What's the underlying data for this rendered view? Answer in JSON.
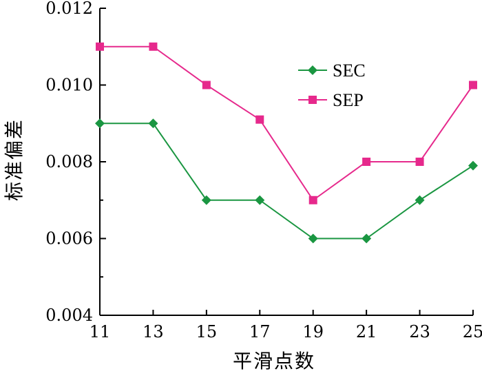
{
  "chart_data": {
    "type": "line",
    "x": [
      11,
      13,
      15,
      17,
      19,
      21,
      23,
      25
    ],
    "xlabel": "平滑点数",
    "ylabel": "标准偏差",
    "xlim": [
      11,
      25
    ],
    "ylim": [
      0.004,
      0.012
    ],
    "xticks": [
      "11",
      "13",
      "15",
      "17",
      "19",
      "21",
      "23",
      "25"
    ],
    "yticks": [
      "0.004",
      "0.006",
      "0.008",
      "0.010",
      "0.012"
    ],
    "grid": false,
    "legend_position": "top-right",
    "series": [
      {
        "name": "SEC",
        "color": "#1a9641",
        "marker": "diamond",
        "values": [
          0.009,
          0.009,
          0.007,
          0.007,
          0.006,
          0.006,
          0.007,
          0.0079
        ]
      },
      {
        "name": "SEP",
        "color": "#e6298c",
        "marker": "square",
        "values": [
          0.011,
          0.011,
          0.01,
          0.0091,
          0.007,
          0.008,
          0.008,
          0.01
        ]
      }
    ]
  }
}
